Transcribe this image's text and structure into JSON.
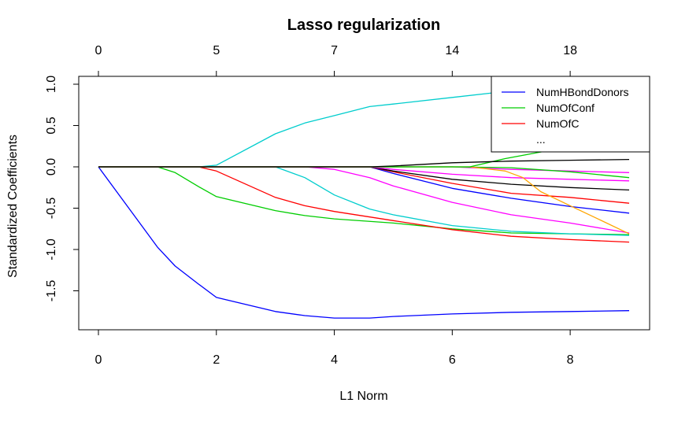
{
  "chart_data": {
    "type": "line",
    "title": "Lasso regularization",
    "xlabel": "L1 Norm",
    "ylabel": "Standardized Coefficients",
    "xlim": [
      0,
      9
    ],
    "ylim": [
      -1.8,
      1.05
    ],
    "x_ticks": [
      0,
      2,
      4,
      6,
      8
    ],
    "y_ticks": [
      1.0,
      0.5,
      0.0,
      -0.5,
      -1.0,
      -1.5
    ],
    "y_tick_labels": [
      "1.0",
      "0.5",
      "0.0",
      "-0.5",
      "-1.0",
      "-1.5"
    ],
    "top_axis": {
      "positions": [
        0,
        2,
        4,
        6,
        8
      ],
      "labels": [
        "0",
        "5",
        "7",
        "14",
        "18"
      ]
    },
    "legend": {
      "placement": "top-right",
      "entries": [
        {
          "label": "NumHBondDonors",
          "color": "#0000ff"
        },
        {
          "label": "NumOfConf",
          "color": "#00cd00"
        },
        {
          "label": "NumOfC",
          "color": "#ff0000"
        },
        {
          "label": "...",
          "color": ""
        }
      ]
    },
    "series": [
      {
        "color": "#0000ff",
        "points": [
          [
            0,
            0
          ],
          [
            1,
            -0.97
          ],
          [
            1.3,
            -1.2
          ],
          [
            1.7,
            -1.42
          ],
          [
            2,
            -1.58
          ],
          [
            3,
            -1.75
          ],
          [
            3.5,
            -1.8
          ],
          [
            4,
            -1.83
          ],
          [
            4.6,
            -1.83
          ],
          [
            5,
            -1.81
          ],
          [
            6,
            -1.78
          ],
          [
            7,
            -1.76
          ],
          [
            8,
            -1.75
          ],
          [
            9,
            -1.74
          ]
        ]
      },
      {
        "color": "#00cdcd",
        "points": [
          [
            0,
            0
          ],
          [
            1.7,
            0
          ],
          [
            2,
            0.02
          ],
          [
            3,
            0.4
          ],
          [
            3.5,
            0.53
          ],
          [
            4,
            0.62
          ],
          [
            4.6,
            0.73
          ],
          [
            5,
            0.76
          ],
          [
            6,
            0.84
          ],
          [
            7,
            0.92
          ],
          [
            8,
            0.97
          ],
          [
            9,
            1.0
          ]
        ]
      },
      {
        "color": "#00cd00",
        "points": [
          [
            0,
            0
          ],
          [
            1,
            0
          ],
          [
            1.3,
            -0.07
          ],
          [
            1.7,
            -0.24
          ],
          [
            2,
            -0.36
          ],
          [
            3,
            -0.53
          ],
          [
            3.5,
            -0.59
          ],
          [
            4,
            -0.63
          ],
          [
            5,
            -0.68
          ],
          [
            6,
            -0.75
          ],
          [
            7,
            -0.8
          ],
          [
            8,
            -0.81
          ],
          [
            9,
            -0.82
          ]
        ]
      },
      {
        "color": "#ff0000",
        "points": [
          [
            0,
            0
          ],
          [
            1.7,
            0
          ],
          [
            2,
            -0.05
          ],
          [
            3,
            -0.37
          ],
          [
            3.5,
            -0.47
          ],
          [
            4,
            -0.54
          ],
          [
            5,
            -0.65
          ],
          [
            6,
            -0.76
          ],
          [
            7,
            -0.84
          ],
          [
            8,
            -0.88
          ],
          [
            9,
            -0.91
          ]
        ]
      },
      {
        "color": "#00cdcd",
        "points": [
          [
            0,
            0
          ],
          [
            3,
            0
          ],
          [
            3.5,
            -0.13
          ],
          [
            4,
            -0.34
          ],
          [
            4.6,
            -0.51
          ],
          [
            5,
            -0.58
          ],
          [
            6,
            -0.71
          ],
          [
            7,
            -0.78
          ],
          [
            8,
            -0.81
          ],
          [
            9,
            -0.83
          ]
        ]
      },
      {
        "color": "#ff00ff",
        "points": [
          [
            0,
            0
          ],
          [
            3.5,
            0
          ],
          [
            4,
            -0.03
          ],
          [
            4.6,
            -0.13
          ],
          [
            5,
            -0.23
          ],
          [
            6,
            -0.43
          ],
          [
            7,
            -0.58
          ],
          [
            8,
            -0.68
          ],
          [
            9,
            -0.8
          ]
        ]
      },
      {
        "color": "#0000ff",
        "points": [
          [
            0,
            0
          ],
          [
            4.6,
            0
          ],
          [
            5,
            -0.08
          ],
          [
            6,
            -0.26
          ],
          [
            7,
            -0.38
          ],
          [
            8,
            -0.48
          ],
          [
            9,
            -0.56
          ]
        ]
      },
      {
        "color": "#ff0000",
        "points": [
          [
            0,
            0
          ],
          [
            4.6,
            0
          ],
          [
            5,
            -0.06
          ],
          [
            6,
            -0.2
          ],
          [
            7,
            -0.32
          ],
          [
            8,
            -0.37
          ],
          [
            9,
            -0.44
          ]
        ]
      },
      {
        "color": "#000000",
        "points": [
          [
            0,
            0
          ],
          [
            4.6,
            0
          ],
          [
            5,
            -0.05
          ],
          [
            6,
            -0.15
          ],
          [
            7,
            -0.21
          ],
          [
            8,
            -0.25
          ],
          [
            9,
            -0.28
          ]
        ]
      },
      {
        "color": "#ff00ff",
        "points": [
          [
            0,
            0
          ],
          [
            4.6,
            0
          ],
          [
            5,
            -0.03
          ],
          [
            6,
            -0.09
          ],
          [
            7,
            -0.13
          ],
          [
            8,
            -0.15
          ],
          [
            9,
            -0.17
          ]
        ]
      },
      {
        "color": "#ff00ff",
        "points": [
          [
            0,
            0
          ],
          [
            6,
            0
          ],
          [
            7,
            -0.03
          ],
          [
            8,
            -0.05
          ],
          [
            9,
            -0.07
          ]
        ]
      },
      {
        "color": "#00cd00",
        "points": [
          [
            0,
            0
          ],
          [
            6,
            0
          ],
          [
            7,
            -0.01
          ],
          [
            8,
            -0.06
          ],
          [
            9,
            -0.13
          ]
        ]
      },
      {
        "color": "#ffa500",
        "points": [
          [
            0,
            0
          ],
          [
            6.3,
            0
          ],
          [
            6.9,
            -0.05
          ],
          [
            7.2,
            -0.13
          ],
          [
            7.5,
            -0.3
          ],
          [
            8,
            -0.47
          ],
          [
            8.5,
            -0.64
          ],
          [
            9,
            -0.81
          ]
        ]
      },
      {
        "color": "#00cd00",
        "points": [
          [
            0,
            0
          ],
          [
            6.3,
            0
          ],
          [
            6.9,
            0.1
          ],
          [
            7.5,
            0.18
          ],
          [
            8,
            0.25
          ],
          [
            8.5,
            0.32
          ],
          [
            9,
            0.39
          ]
        ]
      },
      {
        "color": "#000000",
        "points": [
          [
            0,
            0
          ],
          [
            4.6,
            0
          ],
          [
            5,
            0.01
          ],
          [
            6,
            0.05
          ],
          [
            7,
            0.07
          ],
          [
            8,
            0.08
          ],
          [
            9,
            0.09
          ]
        ]
      }
    ]
  }
}
